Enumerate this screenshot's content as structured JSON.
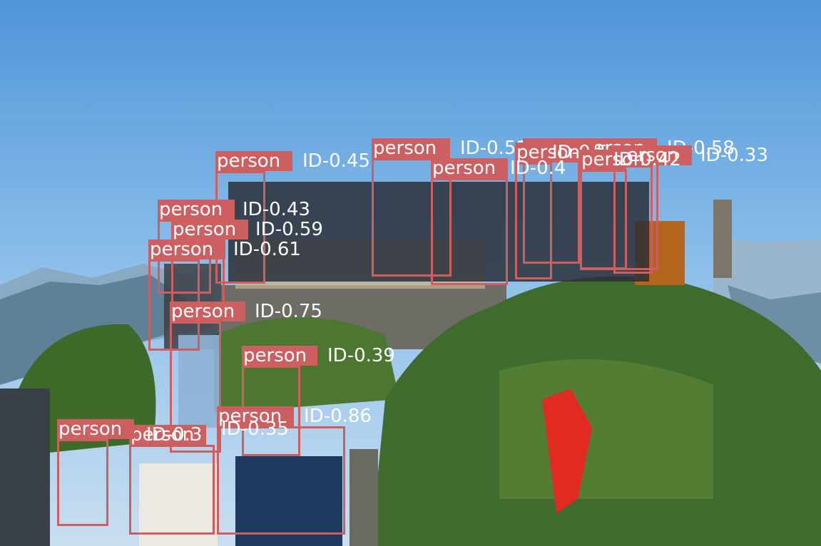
{
  "scene": {
    "description_colors": {
      "box": "#cd5f61",
      "label_text": "#ffffff"
    },
    "detections": [
      {
        "label": "person",
        "id_text": "ID-0.51"
      },
      {
        "label": "person",
        "id_text": "ID-0.45"
      },
      {
        "label": "person",
        "id_text": "ID-0.38"
      },
      {
        "label": "person",
        "id_text": "ID-0.58"
      },
      {
        "label": "person",
        "id_text": "ID-0.33"
      },
      {
        "label": "person",
        "id_text": "ID-0.5"
      },
      {
        "label": "person",
        "id_text": "ID-0.42"
      },
      {
        "label": "person",
        "id_text": "ID-0.4"
      },
      {
        "label": "person",
        "id_text": "ID-0.43"
      },
      {
        "label": "person",
        "id_text": "ID-0.59"
      },
      {
        "label": "person",
        "id_text": "ID-0.61"
      },
      {
        "label": "person",
        "id_text": "ID-0.75"
      },
      {
        "label": "person",
        "id_text": "ID-0.39"
      },
      {
        "label": "person",
        "id_text": "ID-0.86"
      },
      {
        "label": "person",
        "id_text": "ID-0.3"
      },
      {
        "label": "person",
        "id_text": "ID-0.35"
      }
    ]
  }
}
